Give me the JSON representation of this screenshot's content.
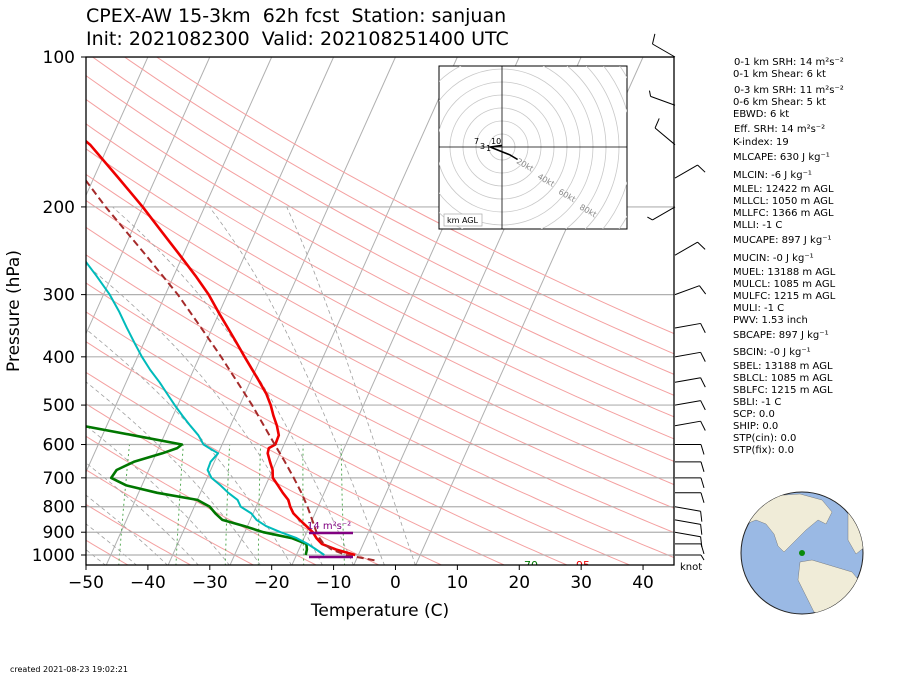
{
  "header": {
    "title_line1": "CPEX-AW 15-3km  62h fcst  Station: sanjuan",
    "title_line2": "Init: 2021082300  Valid: 202108251400 UTC"
  },
  "chart_data": {
    "type": "skew-t",
    "xlabel": "Temperature (C)",
    "ylabel": "Pressure (hPa)",
    "xlim": [
      -50,
      45
    ],
    "ylim": [
      1050,
      100
    ],
    "y_scale": "log",
    "xticks": [
      "−50",
      "−40",
      "−30",
      "−20",
      "−10",
      "0",
      "10",
      "20",
      "30",
      "40"
    ],
    "yticks": [
      "100",
      "200",
      "300",
      "400",
      "500",
      "600",
      "700",
      "800",
      "900",
      "1000"
    ],
    "temperature": [
      [
        1000,
        29.5
      ],
      [
        975,
        26
      ],
      [
        950,
        23.3
      ],
      [
        925,
        22
      ],
      [
        900,
        21
      ],
      [
        875,
        19.5
      ],
      [
        850,
        18
      ],
      [
        825,
        16.5
      ],
      [
        800,
        15.5
      ],
      [
        775,
        14.7
      ],
      [
        750,
        13.3
      ],
      [
        725,
        12
      ],
      [
        700,
        10.6
      ],
      [
        675,
        10
      ],
      [
        650,
        9
      ],
      [
        625,
        8
      ],
      [
        610,
        7.8
      ],
      [
        600,
        8.6
      ],
      [
        575,
        8.5
      ],
      [
        550,
        7.5
      ],
      [
        525,
        6.2
      ],
      [
        500,
        5
      ],
      [
        475,
        3.5
      ],
      [
        450,
        1.6
      ],
      [
        425,
        -0.5
      ],
      [
        400,
        -2.7
      ],
      [
        375,
        -5
      ],
      [
        350,
        -7.5
      ],
      [
        325,
        -10.2
      ],
      [
        300,
        -13
      ],
      [
        275,
        -16.5
      ],
      [
        250,
        -20.5
      ],
      [
        225,
        -25
      ],
      [
        200,
        -30
      ],
      [
        175,
        -36
      ],
      [
        150,
        -43
      ],
      [
        140,
        -47
      ],
      [
        130,
        -51
      ],
      [
        120,
        -55
      ],
      [
        110,
        -60
      ],
      [
        100,
        -64
      ]
    ],
    "dewpoint": [
      [
        1000,
        24.5
      ],
      [
        975,
        22.8
      ],
      [
        950,
        21
      ],
      [
        925,
        18.8
      ],
      [
        900,
        15.8
      ],
      [
        875,
        13
      ],
      [
        850,
        11
      ],
      [
        825,
        9.7
      ],
      [
        800,
        7.5
      ],
      [
        775,
        6.5
      ],
      [
        750,
        4.5
      ],
      [
        725,
        2.7
      ],
      [
        700,
        0.7
      ],
      [
        675,
        -0.5
      ],
      [
        650,
        -0.6
      ],
      [
        625,
        0
      ],
      [
        610,
        -1.8
      ],
      [
        600,
        -3
      ],
      [
        575,
        -4.5
      ],
      [
        550,
        -6.5
      ],
      [
        525,
        -8.5
      ],
      [
        500,
        -10.5
      ],
      [
        475,
        -12.5
      ],
      [
        450,
        -14.6
      ],
      [
        425,
        -17
      ],
      [
        400,
        -19.3
      ],
      [
        375,
        -21.5
      ],
      [
        350,
        -23.8
      ],
      [
        325,
        -26.2
      ],
      [
        300,
        -29
      ],
      [
        275,
        -32.5
      ],
      [
        250,
        -36.5
      ],
      [
        225,
        -40
      ],
      [
        200,
        -40.5
      ],
      [
        175,
        -43.5
      ],
      [
        150,
        -47
      ],
      [
        140,
        -50
      ],
      [
        130,
        -55
      ],
      [
        120,
        -60
      ],
      [
        110,
        -64
      ],
      [
        100,
        -69
      ]
    ],
    "dewpoint_green": [
      [
        1000,
        21.5
      ],
      [
        975,
        21.3
      ],
      [
        950,
        20.8
      ],
      [
        925,
        18
      ],
      [
        900,
        13
      ],
      [
        875,
        9.5
      ],
      [
        850,
        5.5
      ],
      [
        825,
        3.9
      ],
      [
        800,
        2.5
      ],
      [
        775,
        0
      ],
      [
        750,
        -7
      ],
      [
        725,
        -12.5
      ],
      [
        700,
        -15.5
      ],
      [
        675,
        -15.2
      ],
      [
        650,
        -13
      ],
      [
        625,
        -9
      ],
      [
        610,
        -7
      ],
      [
        600,
        -6.5
      ],
      [
        575,
        -15
      ],
      [
        550,
        -24
      ],
      [
        525,
        -31.5
      ],
      [
        500,
        -37
      ],
      [
        475,
        -44
      ],
      [
        450,
        -45
      ],
      [
        425,
        -49.5
      ],
      [
        400,
        -57
      ],
      [
        375,
        -75
      ],
      [
        350,
        -80
      ],
      [
        325,
        -79
      ],
      [
        300,
        -68
      ],
      [
        275,
        -64
      ],
      [
        250,
        -68.5
      ],
      [
        225,
        -71
      ],
      [
        200,
        -75
      ],
      [
        175,
        -73
      ],
      [
        150,
        -77
      ],
      [
        140,
        -79
      ],
      [
        130,
        -79
      ],
      [
        120,
        -81
      ],
      [
        110,
        -80
      ],
      [
        100,
        -77
      ]
    ],
    "parcel": [
      [
        1025,
        33
      ],
      [
        1000,
        28
      ],
      [
        975,
        25.3
      ],
      [
        950,
        23.6
      ],
      [
        925,
        22.5
      ],
      [
        900,
        21.6
      ],
      [
        850,
        20
      ],
      [
        800,
        18.3
      ],
      [
        750,
        16.3
      ],
      [
        700,
        14
      ],
      [
        650,
        11.4
      ],
      [
        600,
        8.5
      ],
      [
        550,
        5.4
      ],
      [
        500,
        2
      ],
      [
        450,
        -2
      ],
      [
        400,
        -6.5
      ],
      [
        350,
        -11.8
      ],
      [
        300,
        -18
      ],
      [
        250,
        -26
      ],
      [
        200,
        -36
      ],
      [
        150,
        -48
      ],
      [
        120,
        -58
      ],
      [
        100,
        -66
      ]
    ],
    "surface_temp_label": "95",
    "surface_dewpoint_label": "70",
    "srh_label": "14 m²s⁻²",
    "wind_unit_label": "knot",
    "hodograph": {
      "box_label": "km AGL",
      "ring_labels": [
        "20kt",
        "40kt",
        "60kt",
        "80kt"
      ],
      "height_labels": [
        "10",
        "7",
        "3",
        "1"
      ],
      "trace_uv": [
        [
          4,
          -8
        ],
        [
          2,
          -5
        ],
        [
          0,
          -3
        ],
        [
          -2,
          -1
        ],
        [
          -3,
          0
        ],
        [
          0,
          1
        ]
      ]
    },
    "wind_barbs": [
      {
        "p": 1000,
        "speed": 5,
        "dir": 90
      },
      {
        "p": 950,
        "speed": 10,
        "dir": 90
      },
      {
        "p": 900,
        "speed": 10,
        "dir": 100
      },
      {
        "p": 850,
        "speed": 10,
        "dir": 100
      },
      {
        "p": 800,
        "speed": 10,
        "dir": 100
      },
      {
        "p": 750,
        "speed": 10,
        "dir": 90
      },
      {
        "p": 700,
        "speed": 10,
        "dir": 90
      },
      {
        "p": 650,
        "speed": 10,
        "dir": 90
      },
      {
        "p": 600,
        "speed": 10,
        "dir": 90
      },
      {
        "p": 550,
        "speed": 10,
        "dir": 80
      },
      {
        "p": 500,
        "speed": 10,
        "dir": 80
      },
      {
        "p": 450,
        "speed": 10,
        "dir": 80
      },
      {
        "p": 400,
        "speed": 10,
        "dir": 80
      },
      {
        "p": 350,
        "speed": 10,
        "dir": 80
      },
      {
        "p": 300,
        "speed": 10,
        "dir": 70
      },
      {
        "p": 250,
        "speed": 10,
        "dir": 60
      },
      {
        "p": 200,
        "speed": 5,
        "dir": 240
      },
      {
        "p": 175,
        "speed": 10,
        "dir": 60
      },
      {
        "p": 150,
        "speed": 10,
        "dir": 310
      },
      {
        "p": 125,
        "speed": 5,
        "dir": 290
      },
      {
        "p": 100,
        "speed": 10,
        "dir": 300
      }
    ]
  },
  "indices": [
    "0-1 km SRH: 14 m²s⁻²",
    "0-1 km Shear: 6 kt",
    "0-3 km SRH: 11 m²s⁻²",
    "0-6 km Shear: 5 kt",
    "EBWD: 6 kt",
    "Eff. SRH: 14 m²s⁻²",
    "K-index: 19",
    "MLCAPE: 630 J kg⁻¹",
    "MLCIN: -6 J kg⁻¹",
    "MLEL: 12422 m AGL",
    "MLLCL: 1050 m AGL",
    "MLLFC: 1366 m AGL",
    "MLLI: -1 C",
    "MUCAPE: 897 J kg⁻¹",
    "MUCIN: -0 J kg⁻¹",
    "MUEL: 13188 m AGL",
    "MULCL: 1085 m AGL",
    "MULFC: 1215 m AGL",
    "MULI: -1 C",
    "PWV: 1.53 inch",
    "SBCAPE: 897 J kg⁻¹",
    "SBCIN: -0 J kg⁻¹",
    "SBEL: 13188 m AGL",
    "SBLCL: 1085 m AGL",
    "SBLFC: 1215 m AGL",
    "SBLI: -1 C",
    "SCP: 0.0",
    "SHIP: 0.0",
    "STP(cin): 0.0",
    "STP(fix): 0.0"
  ],
  "footer": {
    "created": "created 2021-08-23 19:02:21"
  },
  "colors": {
    "temperature": "#ee0000",
    "dewpoint": "#00bbbb",
    "dewpoint_green": "#007700",
    "parcel": "#a52a2a",
    "srh": "#800080",
    "dry_adiabat": "#f4a0a0",
    "moist_adiabat": "#a0a0a0",
    "mixing_ratio": "#55aa55",
    "isotherm": "#b0b0b0",
    "globe_ocean": "#9ab9e4",
    "globe_land": "#f0ecd8"
  }
}
